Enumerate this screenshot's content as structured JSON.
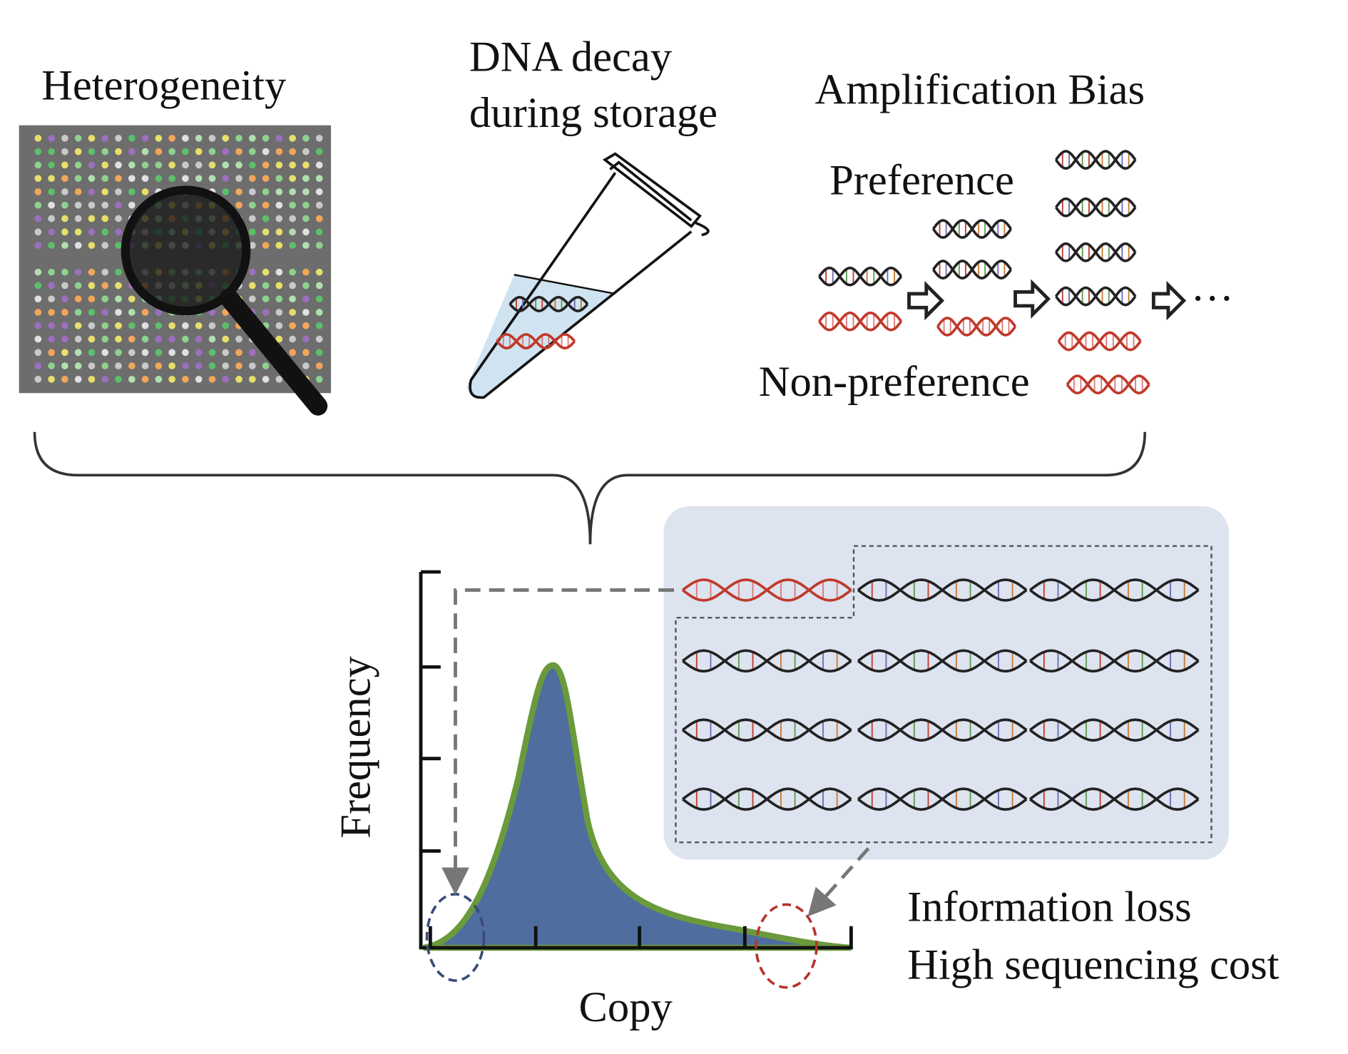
{
  "panels": {
    "heterogeneity": {
      "title": "Heterogeneity"
    },
    "dna_decay": {
      "title_lines": [
        "DNA decay",
        "during storage"
      ]
    },
    "amplification_bias": {
      "title": "Amplification Bias",
      "preference_label": "Preference",
      "non_preference_label": "Non-preference",
      "continuation": "···"
    }
  },
  "distribution": {
    "y_label": "Frequency",
    "x_label": "Copy",
    "outcomes": [
      "Information loss",
      "High sequencing cost"
    ]
  }
}
